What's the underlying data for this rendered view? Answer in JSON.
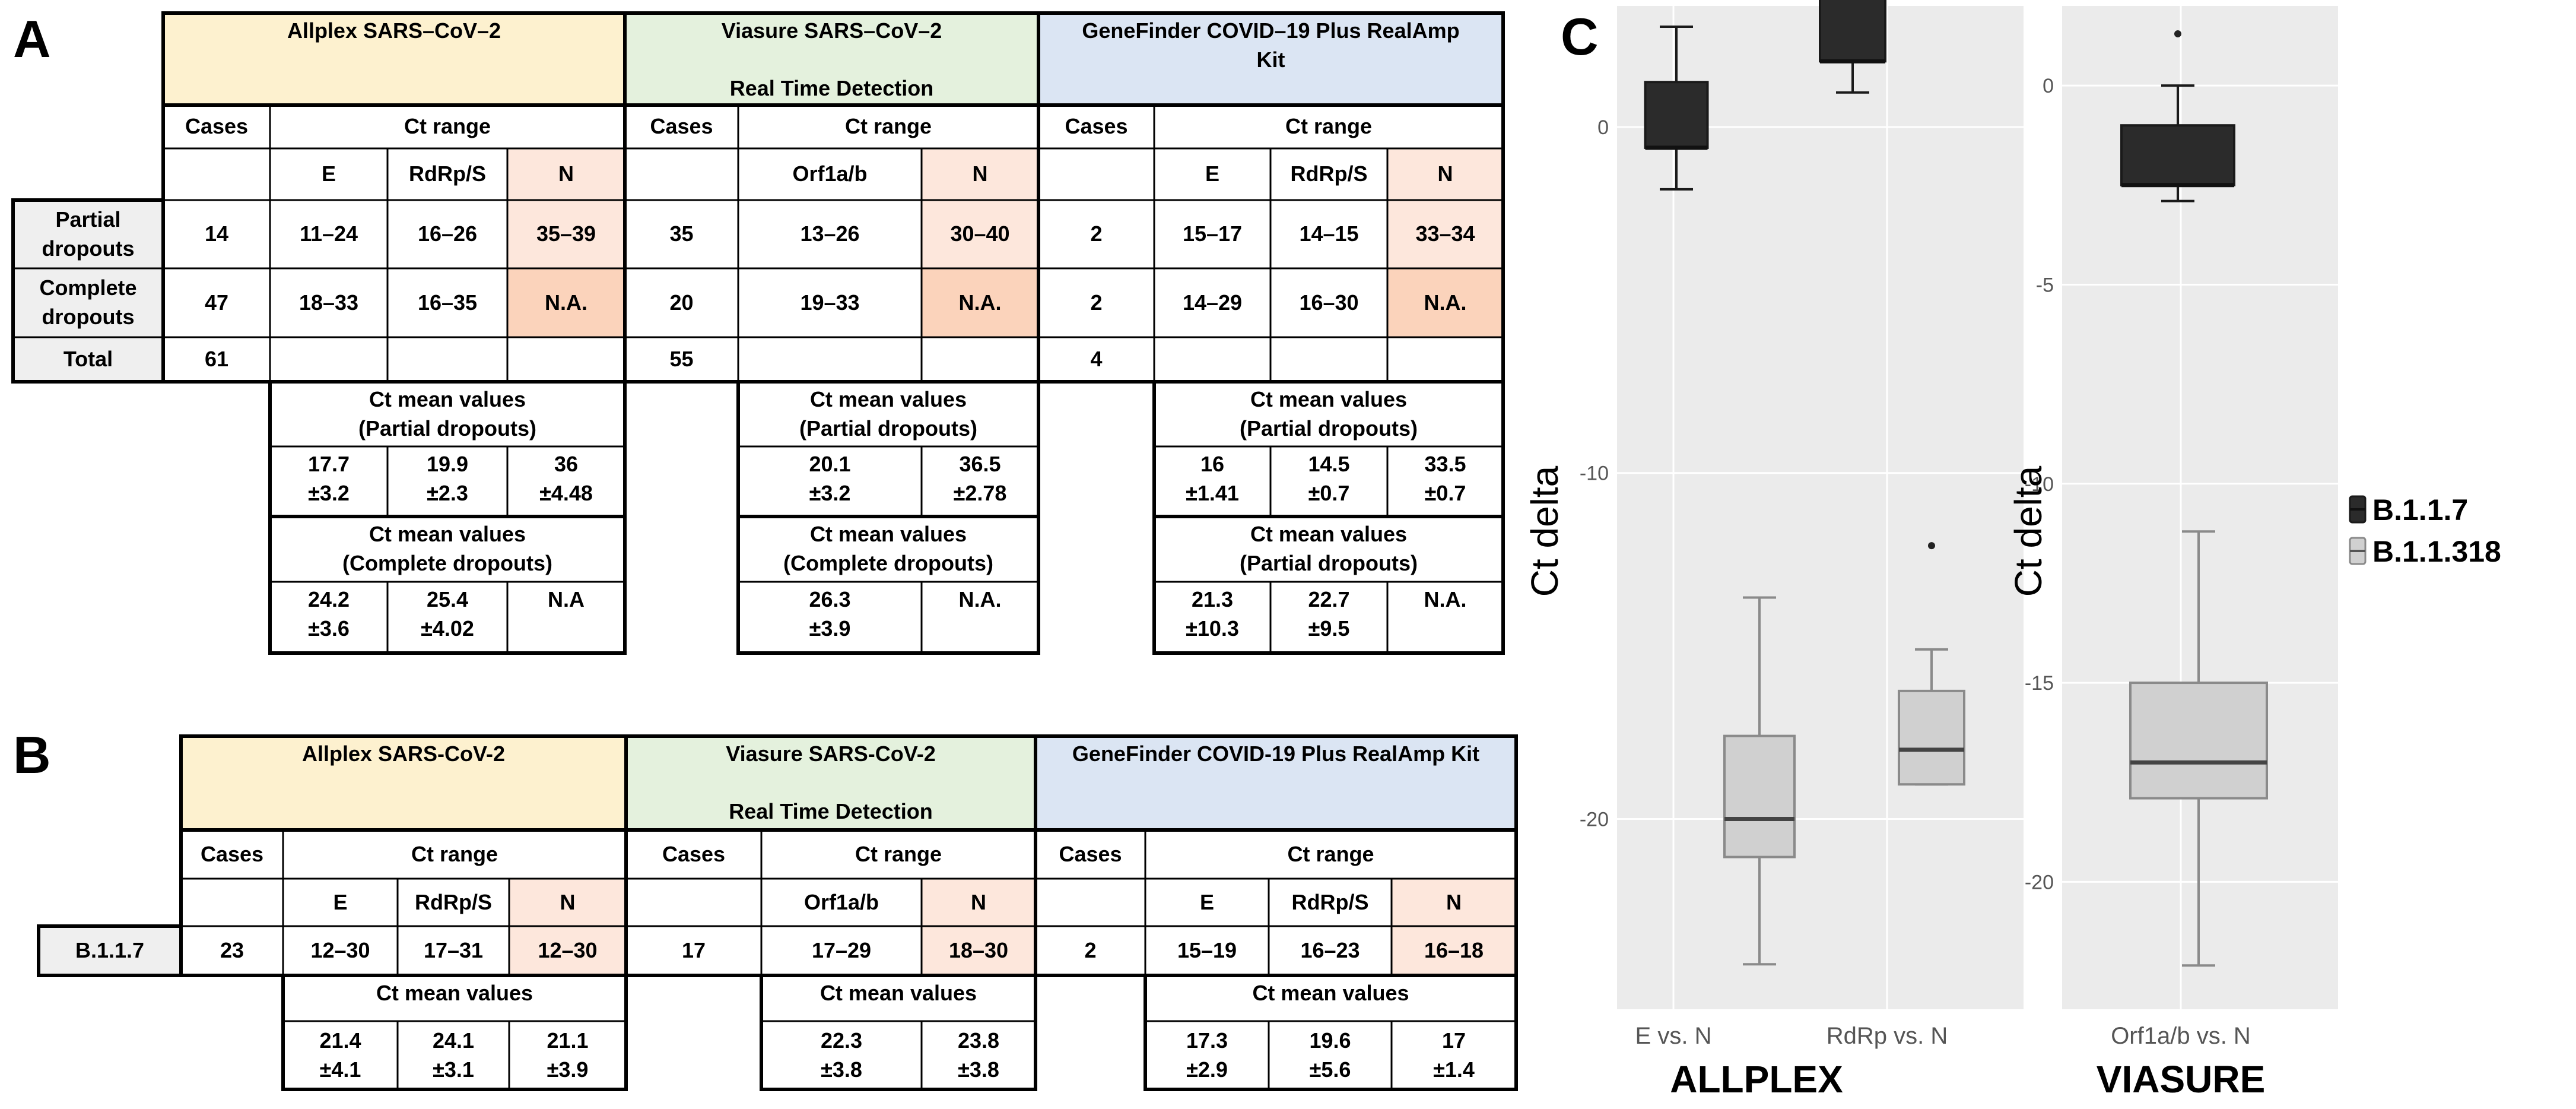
{
  "panels": {
    "a": "A",
    "b": "B",
    "c": "C"
  },
  "colors": {
    "allplex": "#fdf1cf",
    "viasure": "#e4f1dd",
    "genefinder": "#dbe5f3",
    "n_light": "#fde7dc",
    "n_dark": "#fbd3bb",
    "b117": "#2b2b2b",
    "b11318": "#d0d0d0",
    "chart_bg": "#ebebeb"
  },
  "table_a": {
    "kits": [
      "Allplex SARS–CoV–2",
      "Viasure SARS–CoV–2\n\nReal Time Detection",
      "GeneFinder COVID–19 Plus RealAmp\nKit"
    ],
    "cases_label": "Cases",
    "ct_range_label": "Ct range",
    "genes": {
      "allplex": [
        "E",
        "RdRp/S",
        "N"
      ],
      "viasure": [
        "Orf1a/b",
        "N"
      ],
      "genefinder": [
        "E",
        "RdRp/S",
        "N"
      ]
    },
    "rows": [
      {
        "label": "Partial\ndropouts",
        "allplex": [
          "14",
          "11–24",
          "16–26",
          "35–39"
        ],
        "viasure": [
          "35",
          "13–26",
          "30–40"
        ],
        "genefinder": [
          "2",
          "15–17",
          "14–15",
          "33–34"
        ]
      },
      {
        "label": "Complete\ndropouts",
        "allplex": [
          "47",
          "18–33",
          "16–35",
          "N.A."
        ],
        "viasure": [
          "20",
          "19–33",
          "N.A."
        ],
        "genefinder": [
          "2",
          "14–29",
          "16–30",
          "N.A."
        ]
      },
      {
        "label": "Total",
        "allplex": [
          "61"
        ],
        "viasure": [
          "55"
        ],
        "genefinder": [
          "4"
        ]
      }
    ],
    "mean_partial_allplex": {
      "header": "Ct mean values\n(Partial dropouts)",
      "values": [
        "17.7\n±3.2",
        "19.9\n±2.3",
        "36\n±4.48"
      ]
    },
    "mean_complete_allplex": {
      "header": "Ct mean values\n(Complete dropouts)",
      "values": [
        "24.2\n±3.6",
        "25.4\n±4.02",
        "N.A"
      ]
    },
    "mean_partial_viasure": {
      "header": "Ct mean values\n(Partial dropouts)",
      "values": [
        "20.1\n±3.2",
        "36.5\n±2.78"
      ]
    },
    "mean_complete_viasure": {
      "header": "Ct mean values\n(Complete dropouts)",
      "values": [
        "26.3\n±3.9",
        "N.A."
      ]
    },
    "mean_partial_gene": {
      "header": "Ct mean values\n(Partial dropouts)",
      "values": [
        "16\n±1.41",
        "14.5\n±0.7",
        "33.5\n±0.7"
      ]
    },
    "mean_partial2_gene": {
      "header": "Ct mean values\n(Partial dropouts)",
      "values": [
        "21.3\n±10.3",
        "22.7\n±9.5",
        "N.A."
      ]
    }
  },
  "table_b": {
    "kits": [
      "Allplex SARS-CoV-2",
      "Viasure SARS-CoV-2\n\nReal Time Detection",
      "GeneFinder COVID-19 Plus RealAmp Kit"
    ],
    "cases_label": "Cases",
    "ct_range_label": "Ct range",
    "genes": {
      "allplex": [
        "E",
        "RdRp/S",
        "N"
      ],
      "viasure": [
        "Orf1a/b",
        "N"
      ],
      "genefinder": [
        "E",
        "RdRp/S",
        "N"
      ]
    },
    "row": {
      "label": "B.1.1.7",
      "allplex": [
        "23",
        "12–30",
        "17–31",
        "12–30"
      ],
      "viasure": [
        "17",
        "17–29",
        "18–30"
      ],
      "genefinder": [
        "2",
        "15–19",
        "16–23",
        "16–18"
      ]
    },
    "mean_header": "Ct mean values",
    "mean_allplex": [
      "21.4\n±4.1",
      "24.1\n±3.1",
      "21.1\n±3.9"
    ],
    "mean_viasure": [
      "22.3\n±3.8",
      "23.8\n±3.8"
    ],
    "mean_gene": [
      "17.3\n±2.9",
      "19.6\n±5.6",
      "17\n±1.4"
    ]
  },
  "chart_data": [
    {
      "type": "box",
      "title": "ALLPLEX",
      "ylabel": "Ct delta",
      "ylim": [
        -25.5,
        3.5
      ],
      "yticks": [
        0,
        -10,
        -20
      ],
      "ytick_labels": [
        "0",
        "-10",
        "-20"
      ],
      "categories": [
        "E vs. N",
        "RdRp vs. N"
      ],
      "series": [
        {
          "name": "B.1.1.7",
          "boxes": [
            {
              "category": "E vs. N",
              "whisker_low": -1.8,
              "q1": -0.6,
              "median": -0.6,
              "q3": 1.3,
              "whisker_high": 2.9,
              "outliers": []
            },
            {
              "category": "RdRp vs. N",
              "whisker_low": 1.0,
              "q1": 1.9,
              "median": 1.9,
              "q3": 3.9,
              "whisker_high": 5.0,
              "outliers": []
            }
          ]
        },
        {
          "name": "B.1.1.318",
          "boxes": [
            {
              "category": "E vs. N",
              "whisker_low": -24.2,
              "q1": -21.1,
              "median": -20.0,
              "q3": -17.6,
              "whisker_high": -13.6,
              "outliers": []
            },
            {
              "category": "RdRp vs. N",
              "whisker_low": -19.0,
              "q1": -19.0,
              "median": -18.0,
              "q3": -16.3,
              "whisker_high": -15.1,
              "outliers": [
                -12.1
              ]
            }
          ]
        }
      ]
    },
    {
      "type": "box",
      "title": "VIASURE",
      "ylabel": "Ct delta",
      "ylim": [
        -23.2,
        2.0
      ],
      "yticks": [
        0,
        -5,
        -10,
        -15,
        -20
      ],
      "ytick_labels": [
        "0",
        "-5",
        "-10",
        "-15",
        "-20"
      ],
      "categories": [
        "Orf1a/b vs. N"
      ],
      "legend": [
        "B.1.1.7",
        "B.1.1.318"
      ],
      "series": [
        {
          "name": "B.1.1.7",
          "boxes": [
            {
              "category": "Orf1a/b vs. N",
              "whisker_low": -2.9,
              "q1": -2.5,
              "median": -2.5,
              "q3": -1.0,
              "whisker_high": 0.0,
              "outliers": [
                1.3
              ]
            }
          ]
        },
        {
          "name": "B.1.1.318",
          "boxes": [
            {
              "category": "Orf1a/b vs. N",
              "whisker_low": -22.1,
              "q1": -17.9,
              "median": -17.0,
              "q3": -15.0,
              "whisker_high": -11.2,
              "outliers": []
            }
          ]
        }
      ]
    }
  ]
}
